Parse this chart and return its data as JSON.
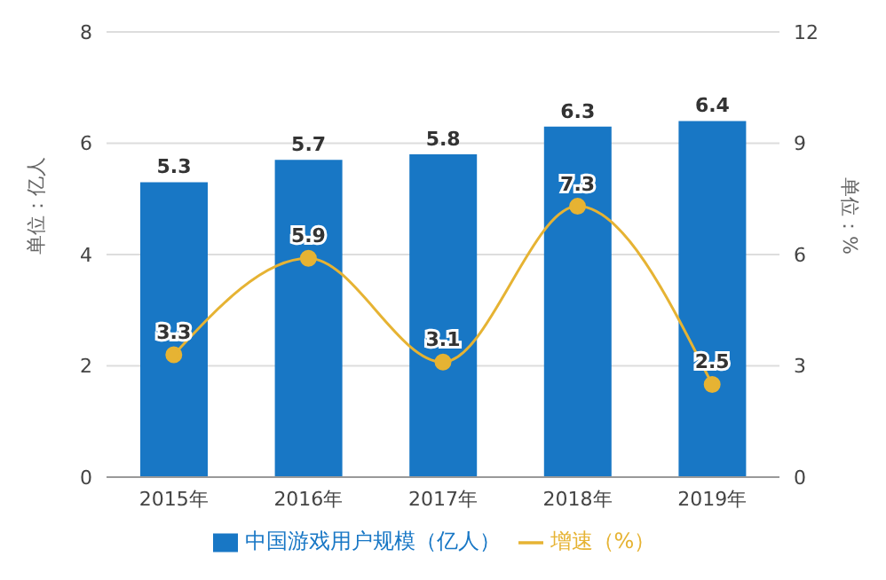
{
  "chart_data": {
    "type": "bar",
    "categories": [
      "2015年",
      "2016年",
      "2017年",
      "2018年",
      "2019年"
    ],
    "series": [
      {
        "name": "中国游戏用户规模（亿人）",
        "color": "#1877c5",
        "values": [
          5.3,
          5.7,
          5.8,
          6.3,
          6.4
        ]
      },
      {
        "name": "增速（%）",
        "type": "line",
        "axis": "y2",
        "color": "#e6b333",
        "values": [
          3.3,
          5.9,
          3.1,
          7.3,
          2.5
        ]
      }
    ],
    "ylabel": "单位：亿人",
    "y2label": "单位：%",
    "ylim": [
      0,
      8
    ],
    "yticks": [
      0,
      2,
      4,
      6,
      8
    ],
    "y2lim": [
      0,
      12
    ],
    "y2ticks": [
      0,
      3,
      6,
      9,
      12
    ],
    "grid": "y",
    "legend": "bottom",
    "marker": "circle",
    "data_labels": true
  }
}
